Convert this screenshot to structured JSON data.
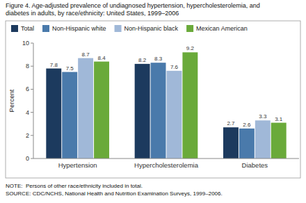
{
  "chart_data": {
    "type": "bar",
    "title": [
      "Figure 4. Age-adjusted prevalence of undiagnosed hypertension, hypercholesterolemia, and",
      "diabetes in adults, by race/ethnicity: United States, 1999–2006"
    ],
    "categories": [
      "Hypertension",
      "Hypercholesterolemia",
      "Diabetes"
    ],
    "series": [
      {
        "name": "Total",
        "color": "#1c3a5e",
        "values": [
          7.8,
          8.2,
          2.7
        ]
      },
      {
        "name": "Non-Hispanic white",
        "color": "#4a7aab",
        "values": [
          7.5,
          8.3,
          2.6
        ]
      },
      {
        "name": "Non-Hispanic black",
        "color": "#a0b8d8",
        "values": [
          8.7,
          7.6,
          3.3
        ]
      },
      {
        "name": "Mexican American",
        "color": "#6aaa3a",
        "values": [
          8.4,
          9.2,
          3.1
        ]
      }
    ],
    "y_label": "Percent",
    "ylim": [
      0,
      10
    ],
    "yticks": [
      0,
      2,
      4,
      6,
      8,
      10
    ],
    "annotations": [
      "NOTE:  Persons of other race/ethnicity included in total.",
      "SOURCE: CDC/NCHS, National Health and Nutrition Examination Surveys, 1999–2006."
    ],
    "data_labels": true,
    "grid": false,
    "legend": "top"
  }
}
